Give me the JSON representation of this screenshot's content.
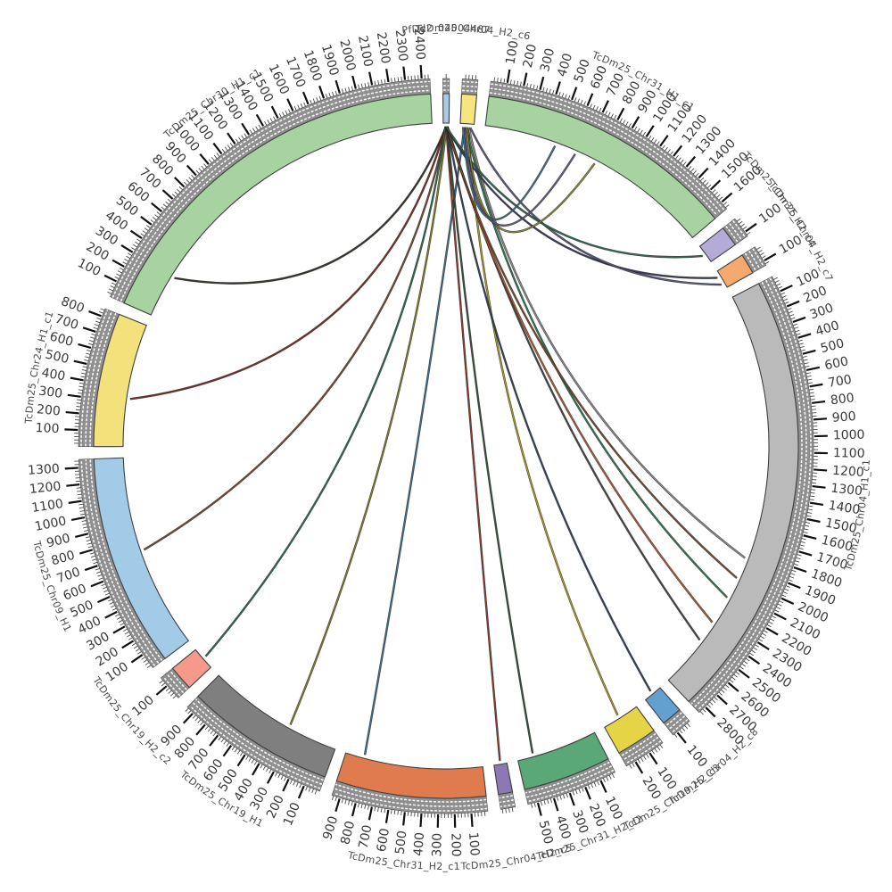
{
  "chart_data": {
    "type": "circos",
    "description": "Circular synteny / link plot of TcDm25 chromosome contigs with chords radiating from two small top segments",
    "tick_interval": 100,
    "minor_tick_interval": 20,
    "layout": {
      "center": [
        500,
        500
      ],
      "gap_deg": 2,
      "start_deg": -0.5,
      "radius": {
        "band_outer": 412,
        "band_color_outer": 395,
        "band_inner": 362,
        "tick_outer": 428,
        "tick_label": 434,
        "name_label": 465,
        "link": 358
      },
      "band_gray": "#8f8f8f",
      "band_edge": "#4d4d4d",
      "tick_color": "#111111",
      "grid": false
    },
    "segments": [
      {
        "name": "PfDd2_04004487",
        "length": 40,
        "color": "#aac9e2"
      },
      {
        "name": "TcDm25_Chr04_H2_c6",
        "length": 95,
        "color": "#f6e57c"
      },
      {
        "name": "TcDm25_Chr31_H1_c1",
        "length": 1650,
        "color": "#a6d3a0"
      },
      {
        "name": "TcDm25_Chr31_H2_c4",
        "length": 130,
        "color": "#b4abd8"
      },
      {
        "name": "TcDm25_Chr04_H2_c7",
        "length": 130,
        "color": "#f6a96e"
      },
      {
        "name": "TcDm25_Chr04_H1_c1",
        "length": 2850,
        "color": "#bababa"
      },
      {
        "name": "TcDm25_Chr04_H2_c8",
        "length": 130,
        "color": "#63a0d0"
      },
      {
        "name": "TcDm25_Chr19_H2_c3",
        "length": 260,
        "color": "#e6d447"
      },
      {
        "name": "TcDm25_Chr31_H2_c2",
        "length": 560,
        "color": "#5aa878"
      },
      {
        "name": "TcDm25_Chr04_H2_c5",
        "length": 90,
        "color": "#8c78b4"
      },
      {
        "name": "TcDm25_Chr31_H2_c1",
        "length": 950,
        "color": "#e07b4f"
      },
      {
        "name": "TcDm25_Chr19_H1",
        "length": 950,
        "color": "#7f7f7f"
      },
      {
        "name": "TcDm25_Chr19_H2_c2",
        "length": 160,
        "color": "#f59a8a"
      },
      {
        "name": "TcDm25_Chr09_H1",
        "length": 1350,
        "color": "#a2cbe8"
      },
      {
        "name": "TcDm25_Chr24_H1_c1",
        "length": 850,
        "color": "#f3e27b"
      },
      {
        "name": "TcDm25_Chr30_H1_c1",
        "length": 2450,
        "color": "#a6d3a0"
      }
    ],
    "links": [
      {
        "source": [
          0,
          20
        ],
        "target": [
          15,
          300
        ],
        "color": "#35352a",
        "tension": 0.48
      },
      {
        "source": [
          0,
          18
        ],
        "target": [
          14,
          330
        ],
        "color": "#7c2d26",
        "tension": 0.33
      },
      {
        "source": [
          0,
          22
        ],
        "target": [
          13,
          700
        ],
        "color": "#7a4a30",
        "tension": 0.22
      },
      {
        "source": [
          0,
          16
        ],
        "target": [
          12,
          80
        ],
        "color": "#2f6b4f",
        "tension": 0.15
      },
      {
        "source": [
          0,
          24
        ],
        "target": [
          11,
          350
        ],
        "color": "#7f7d2a",
        "tension": 0.12
      },
      {
        "source": [
          1,
          30
        ],
        "target": [
          10,
          820
        ],
        "color": "#3c6e8e",
        "tension": 0.08
      },
      {
        "source": [
          0,
          20
        ],
        "target": [
          9,
          45
        ],
        "color": "#8a3a2e",
        "tension": 0.08
      },
      {
        "source": [
          0,
          26
        ],
        "target": [
          8,
          450
        ],
        "color": "#37503b",
        "tension": 0.1
      },
      {
        "source": [
          1,
          55
        ],
        "target": [
          7,
          140
        ],
        "color": "#a89a24",
        "tension": 0.14
      },
      {
        "source": [
          0,
          28
        ],
        "target": [
          6,
          65
        ],
        "color": "#33435a",
        "tension": 0.18
      },
      {
        "source": [
          0,
          30
        ],
        "target": [
          5,
          2500
        ],
        "color": "#474747",
        "tension": 0.3
      },
      {
        "source": [
          0,
          25
        ],
        "target": [
          5,
          2350
        ],
        "color": "#b05a32",
        "tension": 0.3
      },
      {
        "source": [
          1,
          40
        ],
        "target": [
          5,
          2150
        ],
        "color": "#2e7a52",
        "tension": 0.3
      },
      {
        "source": [
          0,
          27
        ],
        "target": [
          5,
          2000
        ],
        "color": "#7a4a2c",
        "tension": 0.3
      },
      {
        "source": [
          1,
          60
        ],
        "target": [
          5,
          1850
        ],
        "color": "#8a8a8a",
        "tension": 0.3
      },
      {
        "source": [
          0,
          20
        ],
        "target": [
          4,
          40
        ],
        "color": "#3a3a68",
        "tension": 0.58
      },
      {
        "source": [
          1,
          70
        ],
        "target": [
          4,
          95
        ],
        "color": "#5a5a7e",
        "tension": 0.6
      },
      {
        "source": [
          0,
          22
        ],
        "target": [
          3,
          65
        ],
        "color": "#2f6b4f",
        "tension": 0.62
      },
      {
        "source": [
          1,
          45
        ],
        "target": [
          2,
          800
        ],
        "color": "#8a8a30",
        "tension": 0.42
      },
      {
        "source": [
          1,
          30
        ],
        "target": [
          2,
          650
        ],
        "color": "#5e5e86",
        "tension": 0.44
      },
      {
        "source": [
          1,
          20
        ],
        "target": [
          2,
          500
        ],
        "color": "#44708e",
        "tension": 0.46
      }
    ]
  }
}
